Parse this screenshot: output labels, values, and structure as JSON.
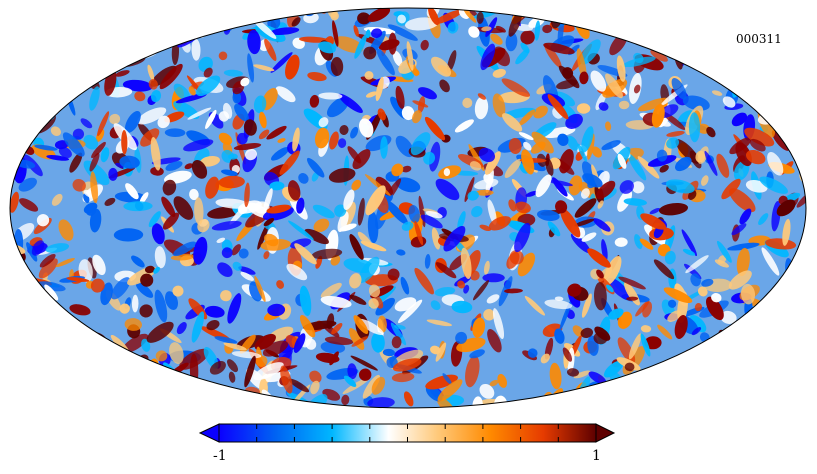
{
  "map": {
    "id_label": "000311",
    "projection": "mollweide",
    "colormap": [
      "#0b00ff",
      "#0063f3",
      "#00b7ff",
      "#ffffff",
      "#ffc97a",
      "#ff8a00",
      "#e63b00",
      "#8c0000",
      "#5e0000"
    ]
  },
  "colorbar": {
    "min_label": "-1",
    "max_label": "1"
  }
}
